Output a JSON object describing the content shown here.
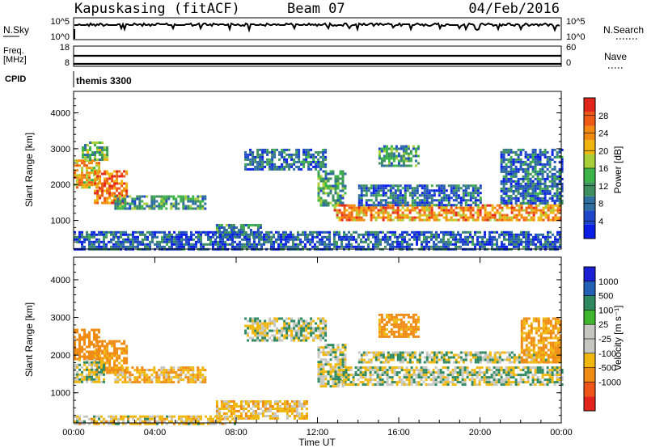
{
  "header": {
    "station": "Kapuskasing (fitACF)",
    "beam": "Beam 07",
    "date": "04/Feb/2016"
  },
  "top_panels": {
    "nsky": {
      "label": "N.Sky",
      "ticks": [
        "10^5",
        "10^0"
      ]
    },
    "nsearch": {
      "label": "N.Search",
      "ticks": [
        "10^5",
        "10^0"
      ]
    },
    "freq": {
      "label_line1": "Freq.",
      "label_line2": "[MHz]",
      "ticks": [
        "18",
        "8"
      ]
    },
    "nave": {
      "label": "Nave",
      "ticks": [
        "60",
        "0"
      ]
    },
    "cpid": {
      "label": "CPID",
      "value": "themis 3300"
    }
  },
  "colors": {
    "power": [
      "#0a1ee6",
      "#1f47c9",
      "#2f6e9e",
      "#3f8f61",
      "#3cb44a",
      "#a9cf3a",
      "#f0b40e",
      "#f28a12",
      "#ee5a14",
      "#e3261c"
    ],
    "velocity": [
      "#1b1fd6",
      "#2461b4",
      "#2f8a61",
      "#3fb62e",
      "#c7c7c2",
      "#c7c7c2",
      "#f0b80f",
      "#f08c14",
      "#ee5518",
      "#e3241c"
    ]
  },
  "chart_data": [
    {
      "type": "heatmap",
      "name": "power",
      "ylabel": "Slant Range [km]",
      "y_ticks": [
        1000,
        2000,
        3000,
        4000
      ],
      "ylim": [
        200,
        4600
      ],
      "xlim": [
        0,
        24
      ],
      "colorbar": {
        "label": "Power [dB]",
        "ticks": [
          4,
          8,
          12,
          16,
          20,
          24,
          28
        ],
        "range": [
          0,
          32
        ]
      },
      "regions": [
        {
          "t0": 0.0,
          "t1": 1.3,
          "r0": 1900,
          "r1": 2700,
          "level": 20
        },
        {
          "t0": 1.0,
          "t1": 2.6,
          "r0": 1500,
          "r1": 2400,
          "level": 24
        },
        {
          "t0": 2.0,
          "t1": 6.5,
          "r0": 1300,
          "r1": 1700,
          "level": 10
        },
        {
          "t0": 0.4,
          "t1": 1.6,
          "r0": 2700,
          "r1": 3200,
          "level": 12
        },
        {
          "t0": 7.0,
          "t1": 9.2,
          "r0": 500,
          "r1": 900,
          "level": 9
        },
        {
          "t0": 8.4,
          "t1": 12.4,
          "r0": 2400,
          "r1": 3000,
          "level": 6
        },
        {
          "t0": 12.0,
          "t1": 13.4,
          "r0": 1400,
          "r1": 2400,
          "level": 10
        },
        {
          "t0": 12.8,
          "t1": 24.0,
          "r0": 1000,
          "r1": 1450,
          "level": 22
        },
        {
          "t0": 14.0,
          "t1": 20.0,
          "r0": 1450,
          "r1": 2000,
          "level": 6
        },
        {
          "t0": 15.0,
          "t1": 17.0,
          "r0": 2500,
          "r1": 3100,
          "level": 10
        },
        {
          "t0": 21.0,
          "t1": 24.0,
          "r0": 1500,
          "r1": 3000,
          "level": 6
        },
        {
          "t0": 0.0,
          "t1": 24.0,
          "r0": 200,
          "r1": 700,
          "level": 5
        }
      ]
    },
    {
      "type": "heatmap",
      "name": "velocity",
      "ylabel": "Slant Range [km]",
      "y_ticks": [
        1000,
        2000,
        3000,
        4000
      ],
      "ylim": [
        200,
        4600
      ],
      "xlim": [
        0,
        24
      ],
      "x_ticks": [
        "00:00",
        "04:00",
        "08:00",
        "12:00",
        "16:00",
        "20:00",
        "00:00"
      ],
      "xlabel": "Time UT",
      "colorbar": {
        "label": "Velocity [m s⁻¹]",
        "ticks": [
          "1000",
          "500",
          "100",
          "25",
          "-25",
          "-100",
          "-500",
          "-1000"
        ]
      },
      "regions": [
        {
          "t0": 0.0,
          "t1": 1.3,
          "r0": 1900,
          "r1": 2700,
          "value": -200
        },
        {
          "t0": 1.0,
          "t1": 2.6,
          "r0": 1500,
          "r1": 2400,
          "value": -150
        },
        {
          "t0": 2.0,
          "t1": 6.5,
          "r0": 1300,
          "r1": 1700,
          "value": -80
        },
        {
          "t0": 0.0,
          "t1": 1.5,
          "r0": 1300,
          "r1": 1900,
          "value": 0
        },
        {
          "t0": 7.0,
          "t1": 11.5,
          "r0": 300,
          "r1": 800,
          "value": -60
        },
        {
          "t0": 8.4,
          "t1": 12.4,
          "r0": 2400,
          "r1": 3000,
          "value": 0
        },
        {
          "t0": 12.0,
          "t1": 13.4,
          "r0": 1200,
          "r1": 2300,
          "value": 0
        },
        {
          "t0": 13.0,
          "t1": 24.0,
          "r0": 1200,
          "r1": 1700,
          "value": 0
        },
        {
          "t0": 14.0,
          "t1": 24.0,
          "r0": 1800,
          "r1": 2100,
          "value": 0
        },
        {
          "t0": 15.0,
          "t1": 17.0,
          "r0": 2500,
          "r1": 3100,
          "value": -150
        },
        {
          "t0": 22.0,
          "t1": 24.0,
          "r0": 1800,
          "r1": 3000,
          "value": -120
        },
        {
          "t0": 0.0,
          "t1": 8.0,
          "r0": 200,
          "r1": 400,
          "value": -40
        }
      ]
    }
  ]
}
